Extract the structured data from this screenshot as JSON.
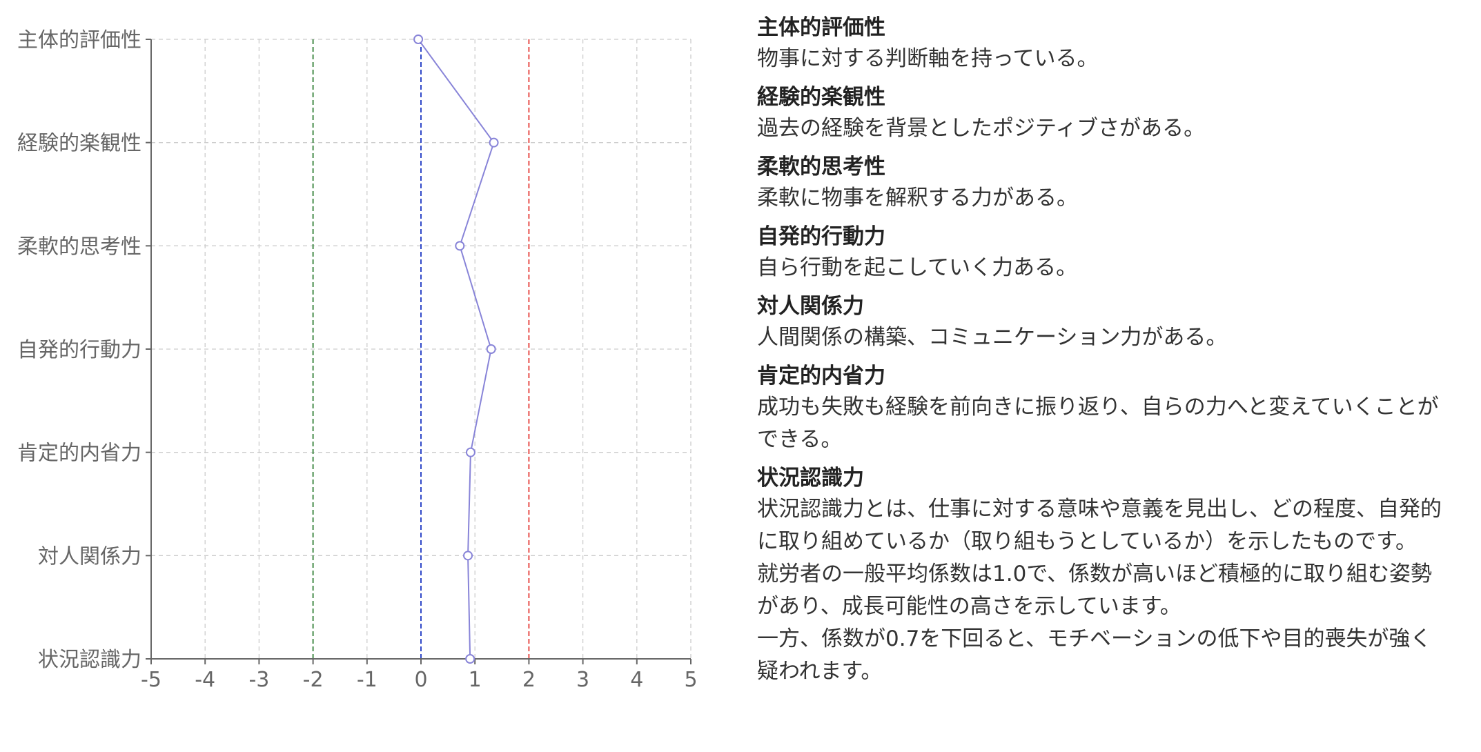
{
  "chart_data": {
    "type": "line",
    "orientation": "horizontal",
    "categories": [
      "主体的評価性",
      "経験的楽観性",
      "柔軟的思考性",
      "自発的行動力",
      "肯定的内省力",
      "対人関係力",
      "状況認識力"
    ],
    "values": [
      -0.05,
      1.35,
      0.72,
      1.3,
      0.92,
      0.87,
      0.91
    ],
    "xlim": [
      -5,
      5
    ],
    "xticks": [
      -5,
      -4,
      -3,
      -2,
      -1,
      0,
      1,
      2,
      3,
      4,
      5
    ],
    "xtick_labels": [
      "-5",
      "-4",
      "-3",
      "-2",
      "-1",
      "0",
      "1",
      "2",
      "3",
      "4",
      "5"
    ],
    "reference_lines": [
      {
        "x": -2,
        "color": "#2e7d32"
      },
      {
        "x": 0,
        "color": "#1a35c4"
      },
      {
        "x": 2,
        "color": "#e53935"
      }
    ],
    "grid": true,
    "line_color": "#8884d8",
    "marker_fill": "#ffffff",
    "grid_color": "#cccccc",
    "axis_color": "#666666",
    "tick_text_color": "#666666",
    "title": "",
    "xlabel": "",
    "ylabel": ""
  },
  "descriptions": [
    {
      "title": "主体的評価性",
      "lines": [
        "物事に対する判断軸を持っている。"
      ]
    },
    {
      "title": "経験的楽観性",
      "lines": [
        "過去の経験を背景としたポジティブさがある。"
      ]
    },
    {
      "title": "柔軟的思考性",
      "lines": [
        "柔軟に物事を解釈する力がある。"
      ]
    },
    {
      "title": "自発的行動力",
      "lines": [
        "自ら行動を起こしていく力ある。"
      ]
    },
    {
      "title": "対人関係力",
      "lines": [
        "人間関係の構築、コミュニケーション力がある。"
      ]
    },
    {
      "title": "肯定的内省力",
      "lines": [
        "成功も失敗も経験を前向きに振り返り、自らの力へと変えていくことが",
        "できる。"
      ]
    },
    {
      "title": "状況認識力",
      "lines": [
        "状況認識力とは、仕事に対する意味や意義を見出し、どの程度、自発的",
        "に取り組めているか（取り組もうとしているか）を示したものです。",
        "就労者の一般平均係数は1.0で、係数が高いほど積極的に取り組む姿勢",
        "があり、成長可能性の高さを示しています。",
        "一方、係数が0.7を下回ると、モチベーションの低下や目的喪失が強く",
        "疑われます。"
      ]
    }
  ]
}
